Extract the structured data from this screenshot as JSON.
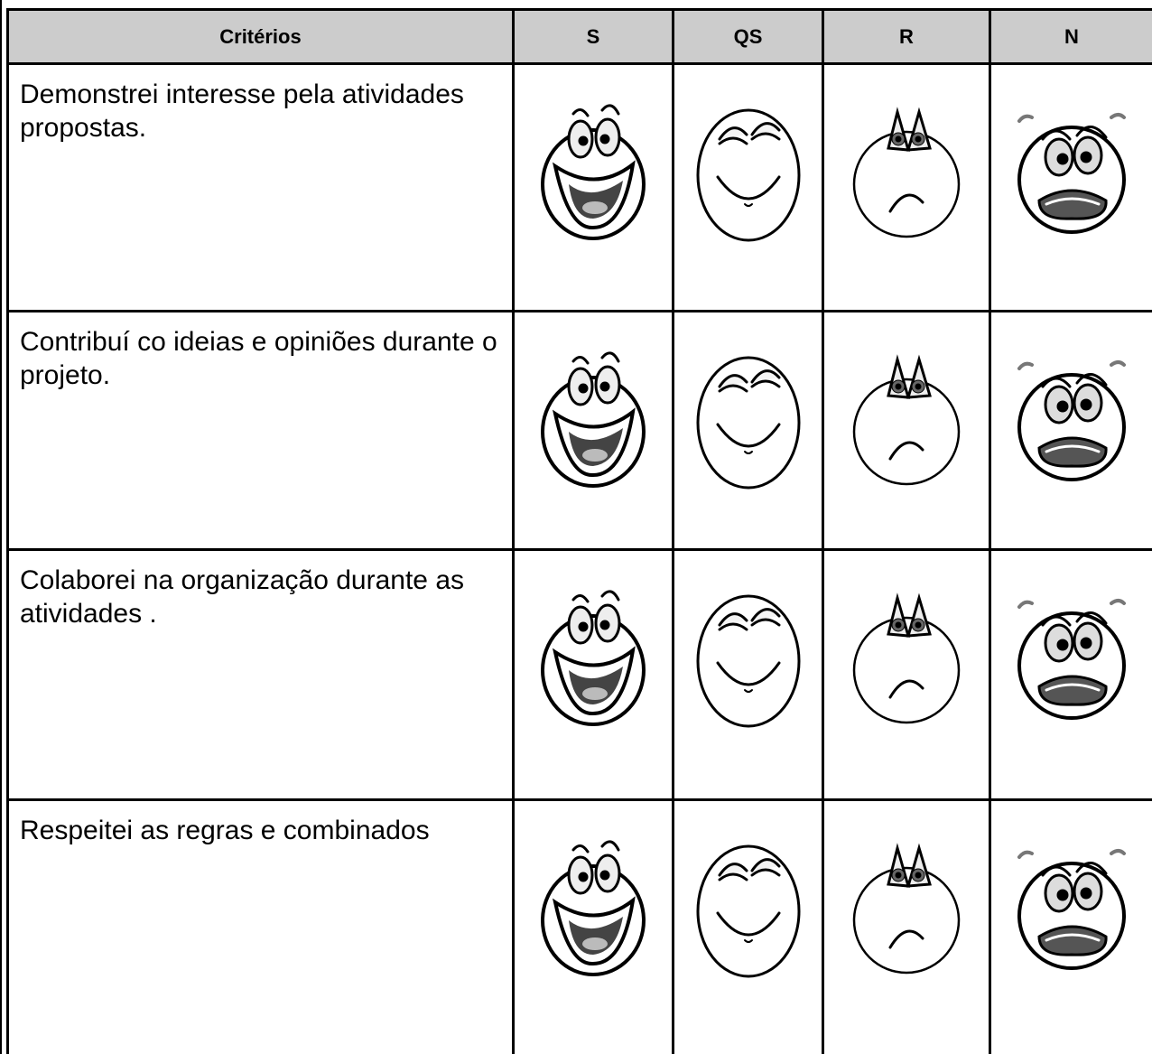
{
  "table": {
    "header": [
      "Critérios",
      "S",
      "QS",
      "R",
      "N"
    ],
    "rows": [
      "Demonstrei interesse pela atividades propostas.",
      "Contribuí co ideias e opiniões durante o projeto.",
      "Colaborei na organização durante as atividades .",
      "Respeitei as regras e combinados"
    ]
  }
}
